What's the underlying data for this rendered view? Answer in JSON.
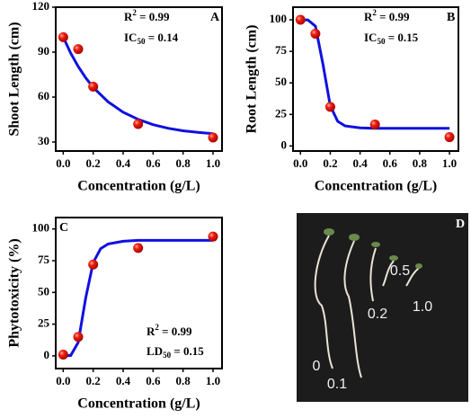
{
  "chart_data": [
    {
      "type": "scatter",
      "panel": "A",
      "x_label": "Concentration (g/L)",
      "y_label": "Shoot Length (cm)",
      "annotations": [
        {
          "text": "R",
          "sup": "2",
          "after": " = 0.99"
        },
        {
          "text": "IC",
          "sub": "50",
          "after": " = 0.14"
        }
      ],
      "xlim": [
        -0.05,
        1.06
      ],
      "ylim": [
        24,
        120
      ],
      "xticks": [
        {
          "value": 0,
          "label": "0.0"
        },
        0.2,
        0.4,
        0.6,
        0.8,
        {
          "value": 1,
          "label": "1.0"
        }
      ],
      "yticks": [
        30,
        60,
        90,
        120
      ],
      "series": [
        {
          "type": "line",
          "color": "#1010e0",
          "x": [
            0,
            0.05,
            0.1,
            0.15,
            0.2,
            0.3,
            0.4,
            0.5,
            0.6,
            0.7,
            0.8,
            0.9,
            1.0
          ],
          "values": [
            100,
            89.3,
            80.4,
            72.9,
            66.5,
            56.8,
            49.9,
            45.1,
            41.6,
            39.2,
            37.5,
            36.4,
            35.5
          ]
        },
        {
          "type": "scatter",
          "color": "#e01010",
          "x": [
            0,
            0.1,
            0.2,
            0.5,
            1.0
          ],
          "values": [
            100,
            92,
            67,
            42,
            33
          ]
        }
      ]
    },
    {
      "type": "scatter",
      "panel": "B",
      "x_label": "Concentration (g/L)",
      "y_label": "Root Length (cm)",
      "annotations": [
        {
          "text": "R",
          "sup": "2",
          "after": " = 0.99"
        },
        {
          "text": "IC",
          "sub": "50",
          "after": " = 0.15"
        }
      ],
      "xlim": [
        -0.05,
        1.06
      ],
      "ylim": [
        -4,
        110
      ],
      "xticks": [
        {
          "value": 0,
          "label": "0.0"
        },
        0.2,
        0.4,
        0.6,
        0.8,
        {
          "value": 1,
          "label": "1.0"
        }
      ],
      "yticks": [
        0,
        25,
        50,
        75,
        100
      ],
      "series": [
        {
          "type": "line",
          "color": "#1010e0",
          "x": [
            0,
            0.05,
            0.1,
            0.15,
            0.2,
            0.25,
            0.3,
            0.4,
            0.5,
            0.7,
            1.0
          ],
          "values": [
            100,
            99.9,
            95,
            65.2,
            31.9,
            19.5,
            15.9,
            14.4,
            14,
            14,
            14
          ]
        },
        {
          "type": "scatter",
          "color": "#e01010",
          "x": [
            0,
            0.1,
            0.2,
            0.5,
            1.0
          ],
          "values": [
            100,
            89,
            31,
            17,
            7
          ]
        }
      ]
    },
    {
      "type": "scatter",
      "panel": "C",
      "x_label": "Concentration (g/L)",
      "y_label": "Phytotoxicity (%)",
      "annotations": [
        {
          "text": "R",
          "sup": "2",
          "after": " = 0.99"
        },
        {
          "text": "LD",
          "sub": "50",
          "after": " = 0.15"
        }
      ],
      "xlim": [
        -0.05,
        1.06
      ],
      "ylim": [
        -10,
        109
      ],
      "xticks": [
        {
          "value": 0,
          "label": "0.0"
        },
        0.2,
        0.4,
        0.6,
        0.8,
        {
          "value": 1,
          "label": "1.0"
        }
      ],
      "yticks": [
        0,
        25,
        50,
        75,
        100
      ],
      "series": [
        {
          "type": "line",
          "color": "#1010e0",
          "x": [
            0,
            0.05,
            0.1,
            0.15,
            0.2,
            0.25,
            0.3,
            0.4,
            0.5,
            0.7,
            1.0
          ],
          "values": [
            0,
            0.37,
            10.6,
            45.5,
            73.5,
            84.5,
            88.2,
            90.3,
            91,
            91,
            91
          ]
        },
        {
          "type": "scatter",
          "color": "#e01010",
          "x": [
            0,
            0.1,
            0.2,
            0.5,
            1.0
          ],
          "values": [
            1,
            15,
            72,
            85,
            94
          ]
        }
      ]
    }
  ],
  "photo": {
    "panel": "D",
    "labels": [
      "0",
      "0.1",
      "0.2",
      "0.5",
      "1.0"
    ]
  }
}
